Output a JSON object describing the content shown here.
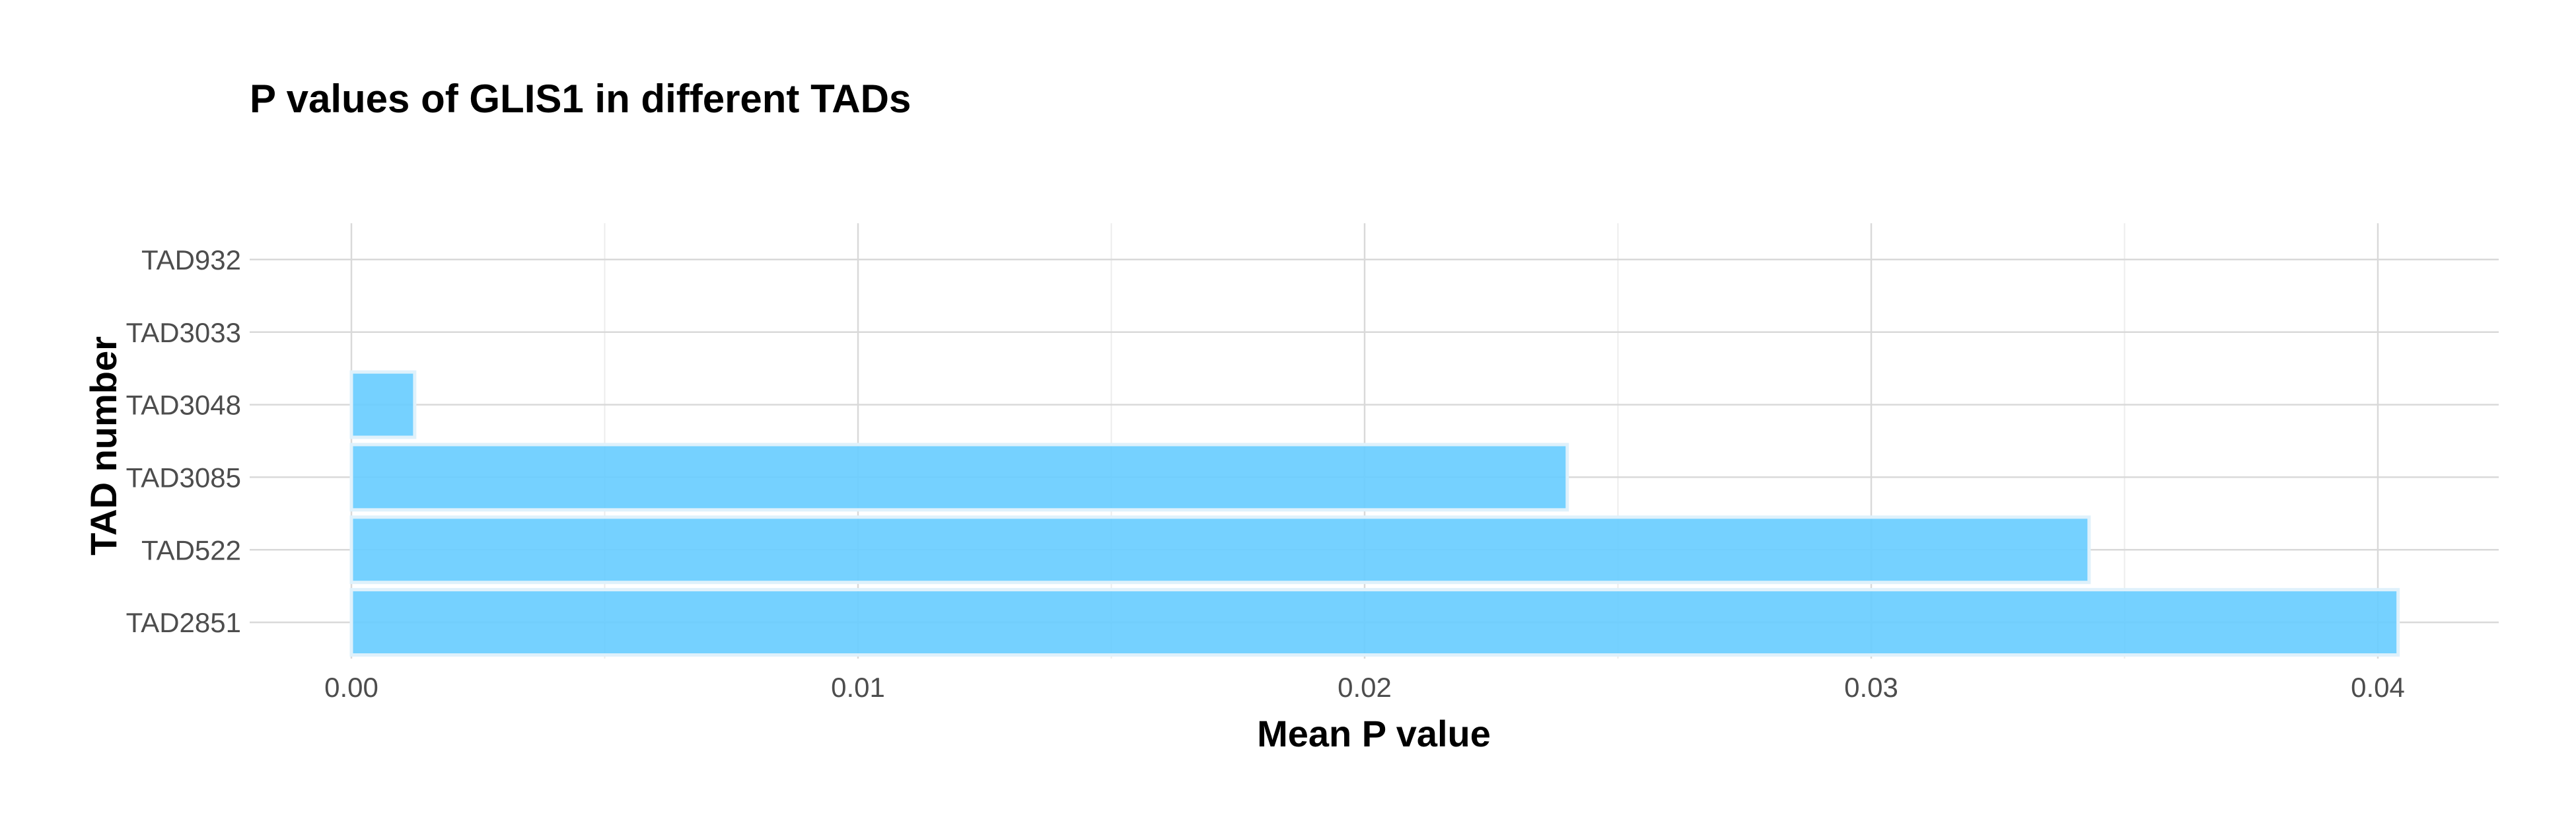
{
  "chart_data": {
    "type": "bar",
    "orientation": "horizontal",
    "title": "P values of GLIS1 in different TADs",
    "xlabel": "Mean P value",
    "ylabel": "TAD number",
    "categories": [
      "TAD932",
      "TAD3033",
      "TAD3048",
      "TAD3085",
      "TAD522",
      "TAD2851"
    ],
    "values": [
      0.0,
      0.0,
      0.00125,
      0.024,
      0.0343,
      0.0404
    ],
    "xlim": [
      -0.002,
      0.0425
    ],
    "xticks": [
      0.0,
      0.01,
      0.02,
      0.03,
      0.04
    ],
    "xtick_labels": [
      "0.00",
      "0.01",
      "0.02",
      "0.03",
      "0.04"
    ],
    "grid": true,
    "legend": "none",
    "bar_color": "#66CCFF"
  }
}
